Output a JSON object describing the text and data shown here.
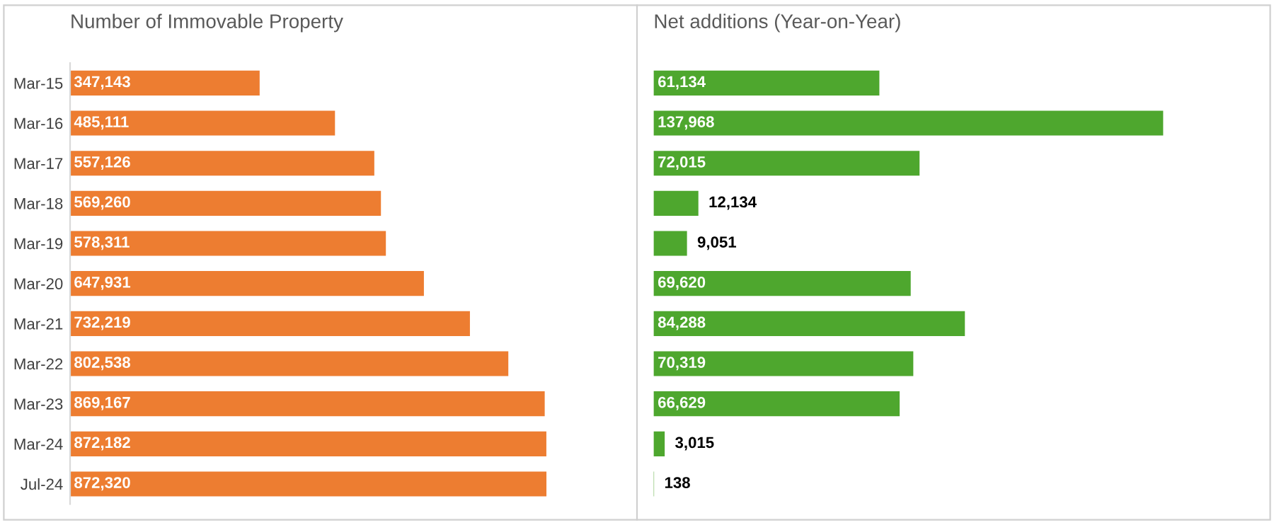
{
  "chart_data": [
    {
      "type": "bar",
      "orientation": "horizontal",
      "title": "Number of Immovable Property",
      "categories": [
        "Mar-15",
        "Mar-16",
        "Mar-17",
        "Mar-18",
        "Mar-19",
        "Mar-20",
        "Mar-21",
        "Mar-22",
        "Mar-23",
        "Mar-24",
        "Jul-24"
      ],
      "color": "#ed7d31",
      "values": [
        347143,
        485111,
        557126,
        569260,
        578311,
        647931,
        732219,
        802538,
        869167,
        872182,
        872320
      ],
      "value_labels": [
        "347,143",
        "485,111",
        "557,126",
        "569,260",
        "578,311",
        "647,931",
        "732,219",
        "802,538",
        "869,167",
        "872,182",
        "872,320"
      ],
      "tick_labels": "y"
    },
    {
      "type": "bar",
      "orientation": "horizontal",
      "title": "Net additions (Year-on-Year)",
      "categories": [
        null,
        null,
        null,
        null,
        null,
        null,
        null,
        null,
        null,
        null,
        null
      ],
      "color": "#4ea72e",
      "values": [
        61134,
        137968,
        72015,
        12134,
        9051,
        69620,
        84288,
        70319,
        66629,
        3015,
        138
      ],
      "value_labels": [
        "61,134",
        "137,968",
        "72,015",
        "12,134",
        "9,051",
        "69,620",
        "84,288",
        "70,319",
        "66,629",
        "3,015",
        "138"
      ],
      "tick_labels": false
    }
  ]
}
